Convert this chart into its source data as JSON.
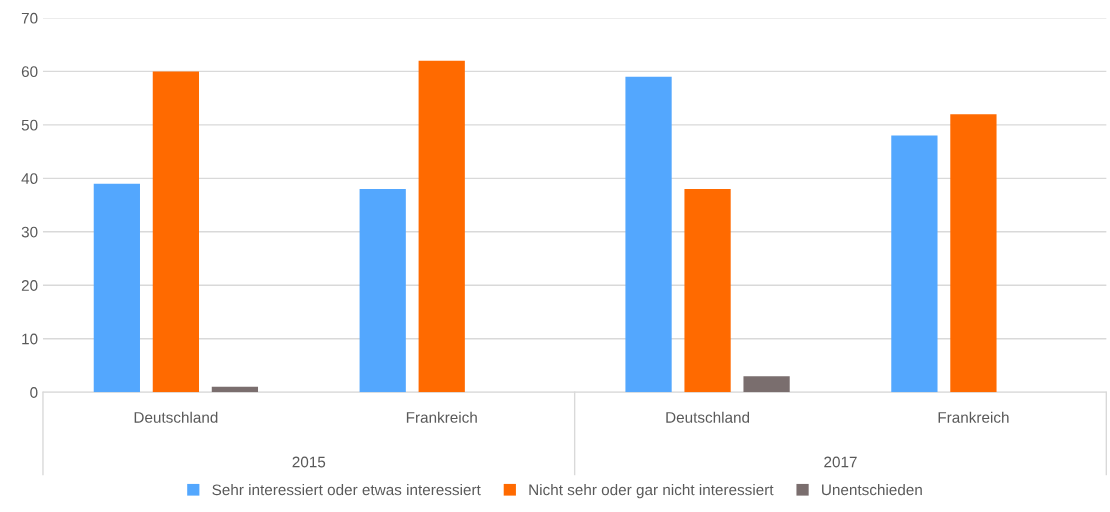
{
  "chart_data": {
    "type": "bar",
    "categories": [
      "Deutschland",
      "Frankreich",
      "Deutschland",
      "Frankreich"
    ],
    "series": [
      {
        "name": "Sehr interessiert oder etwas interessiert",
        "color": "#53a7fe",
        "values": [
          39,
          38,
          59,
          48
        ]
      },
      {
        "name": "Nicht sehr oder gar nicht interessiert",
        "color": "#ff6a00",
        "values": [
          60,
          62,
          38,
          52
        ]
      },
      {
        "name": "Unentschieden",
        "color": "#7a6e6e",
        "values": [
          1,
          null,
          3,
          null
        ]
      }
    ],
    "annotations": [
      "2015",
      "2017"
    ],
    "ylim": [
      0,
      70
    ],
    "yticks": [
      0,
      10,
      20,
      30,
      40,
      50,
      60,
      70
    ],
    "grid": "y",
    "legend": "bottom"
  }
}
